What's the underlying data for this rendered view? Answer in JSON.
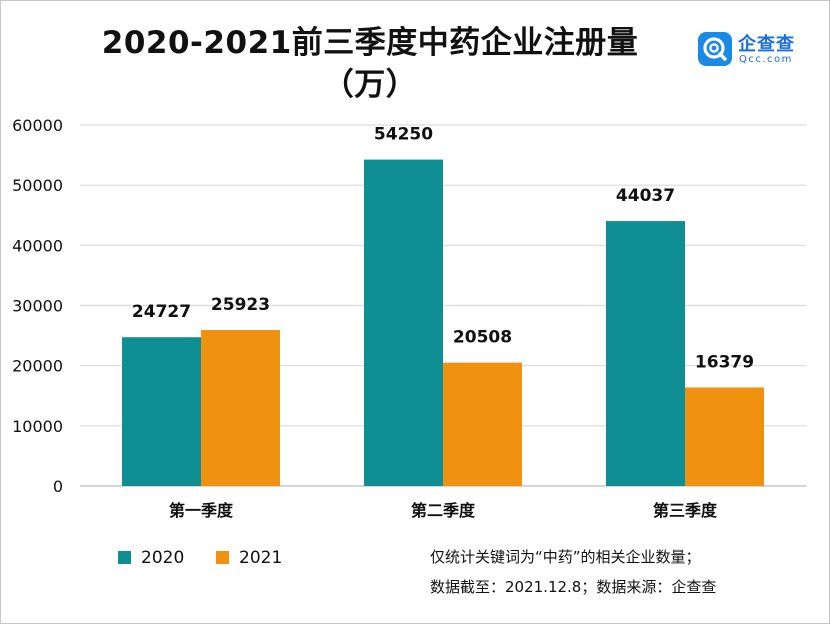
{
  "title_line1": "2020-2021前三季度中药企业注册量",
  "title_line2": "（万）",
  "logo": {
    "name": "企查查",
    "url": "Qcc.com",
    "icon": "qcc-logo-icon",
    "color": "#1a8ae5"
  },
  "note_line1": "仅统计关键词为“中药”的相关企业数量；",
  "note_line2": "数据截至：2021.12.8；数据来源：企查查",
  "chart_data": {
    "type": "bar",
    "title": "2020-2021前三季度中药企业注册量（万）",
    "categories": [
      "第一季度",
      "第二季度",
      "第三季度"
    ],
    "series": [
      {
        "name": "2020",
        "values": [
          24727,
          54250,
          44037
        ],
        "color": "#0f8f93"
      },
      {
        "name": "2021",
        "values": [
          25923,
          20508,
          16379
        ],
        "color": "#f0920f"
      }
    ],
    "yticks": [
      0,
      10000,
      20000,
      30000,
      40000,
      50000,
      60000
    ],
    "ylim": [
      0,
      60000
    ],
    "grid": true,
    "legend": "bottom-left",
    "xlabel": "",
    "ylabel": ""
  }
}
